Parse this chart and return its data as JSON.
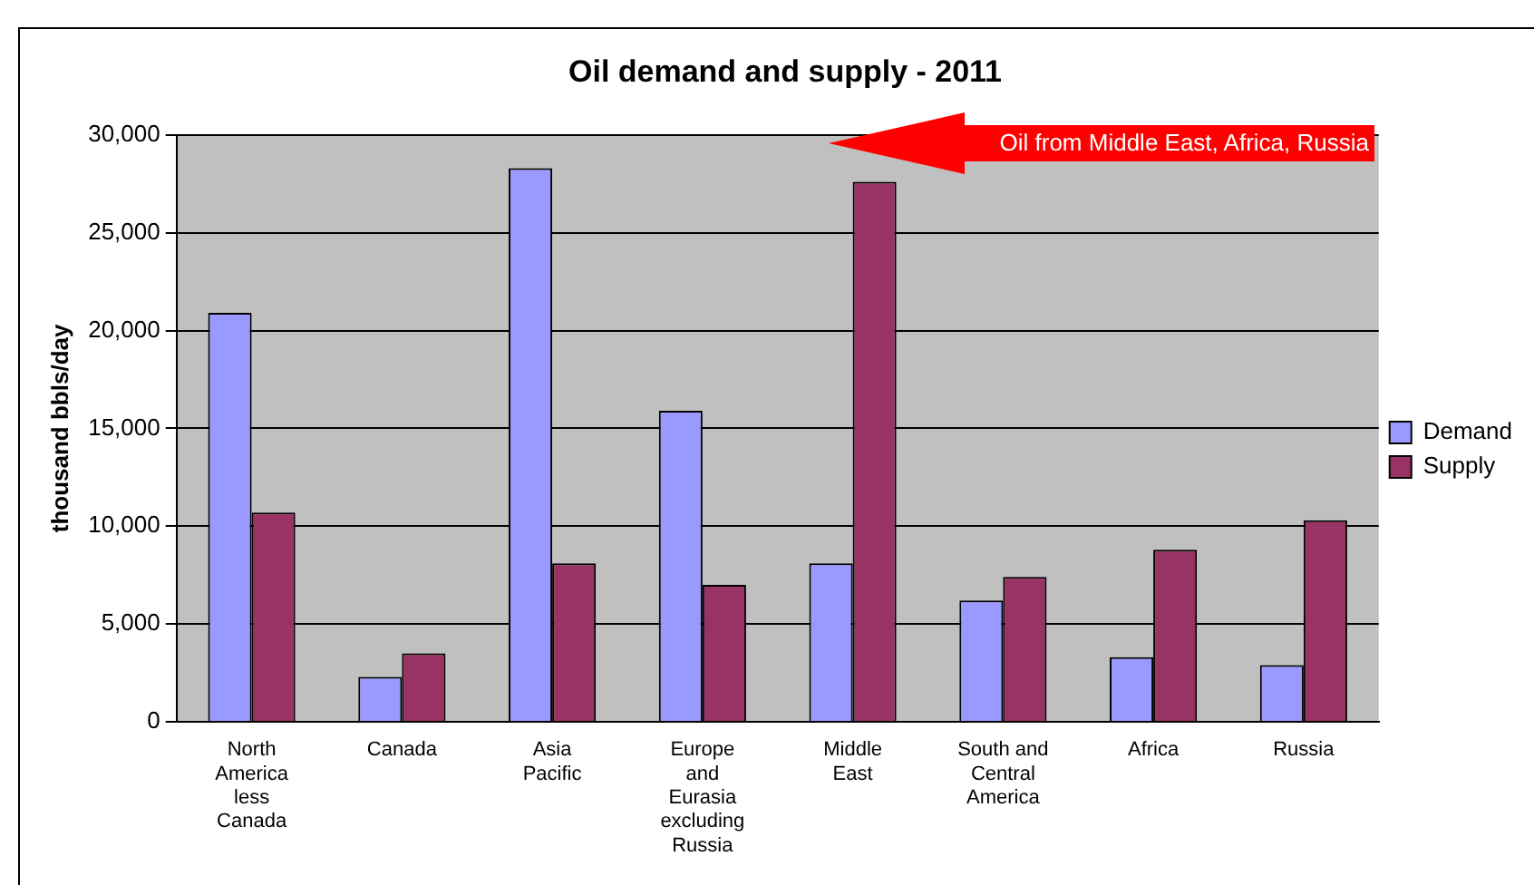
{
  "chart_data": {
    "type": "bar",
    "title": "Oil demand and supply - 2011",
    "ylabel": "thousand bbls/day",
    "categories": [
      "North America less Canada",
      "Canada",
      "Asia Pacific",
      "Europe and Eurasia excluding Russia",
      "Middle East",
      "South and Central America",
      "Africa",
      "Russia"
    ],
    "series": [
      {
        "name": "Demand",
        "color": "#9999ff",
        "values": [
          20900,
          2300,
          28300,
          15900,
          8100,
          6200,
          3300,
          2900
        ]
      },
      {
        "name": "Supply",
        "color": "#993366",
        "values": [
          10700,
          3500,
          8100,
          7000,
          27600,
          7400,
          8800,
          10300
        ]
      }
    ],
    "ylim": [
      0,
      30000
    ],
    "yticks": [
      {
        "value": 0,
        "label": "0"
      },
      {
        "value": 5000,
        "label": "5,000"
      },
      {
        "value": 10000,
        "label": "10,000"
      },
      {
        "value": 15000,
        "label": "15,000"
      },
      {
        "value": 20000,
        "label": "20,000"
      },
      {
        "value": 25000,
        "label": "25,000"
      },
      {
        "value": 30000,
        "label": "30,000"
      }
    ],
    "grid": "y",
    "legend": "right",
    "annotations": [
      "Oil from Middle East, Africa, Russia"
    ]
  }
}
